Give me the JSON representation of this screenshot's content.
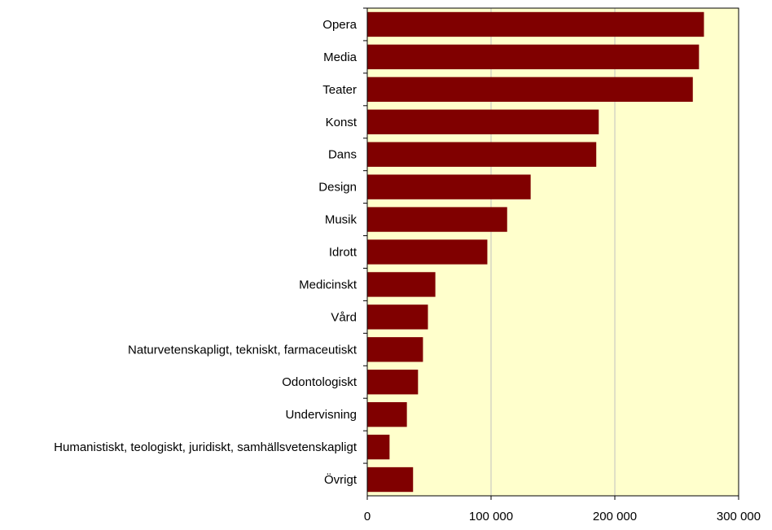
{
  "chart_data": {
    "type": "bar",
    "orientation": "horizontal",
    "title": "",
    "xlabel": "",
    "ylabel": "",
    "categories": [
      "Opera",
      "Media",
      "Teater",
      "Konst",
      "Dans",
      "Design",
      "Musik",
      "Idrott",
      "Medicinskt",
      "Vård",
      "Naturvetenskapligt, tekniskt, farmaceutiskt",
      "Odontologiskt",
      "Undervisning",
      "Humanistiskt, teologiskt, juridiskt, samhällsvetenskapligt",
      "Övrigt"
    ],
    "values": [
      272000,
      268000,
      263000,
      187000,
      185000,
      132000,
      113000,
      97000,
      55000,
      49000,
      45000,
      41000,
      32000,
      18000,
      37000
    ],
    "xlim": [
      0,
      300000
    ],
    "xticks": [
      0,
      100000,
      200000,
      300000
    ],
    "xtick_labels": [
      "0",
      "100 000",
      "200 000",
      "300 000"
    ],
    "grid": "vertical",
    "legend": "none",
    "colors": {
      "bar": "#800000",
      "plot_background": "#ffffcc",
      "gridline": "#c0c0c0",
      "axis": "#000000"
    }
  }
}
